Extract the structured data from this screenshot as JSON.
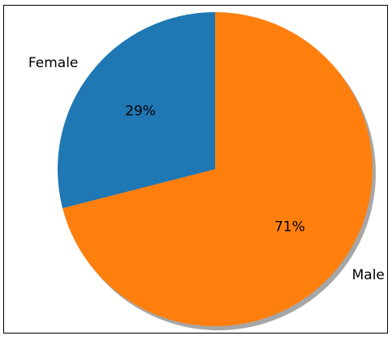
{
  "chart_data": {
    "type": "pie",
    "categories": [
      "Female",
      "Male"
    ],
    "values": [
      29,
      71
    ],
    "value_labels": [
      "29%",
      "71%"
    ],
    "colors": [
      "#1f77b4",
      "#ff7f0e"
    ],
    "start_angle_deg": 90,
    "direction": "counterclockwise",
    "shadow": true,
    "title": "",
    "legend": "none"
  }
}
